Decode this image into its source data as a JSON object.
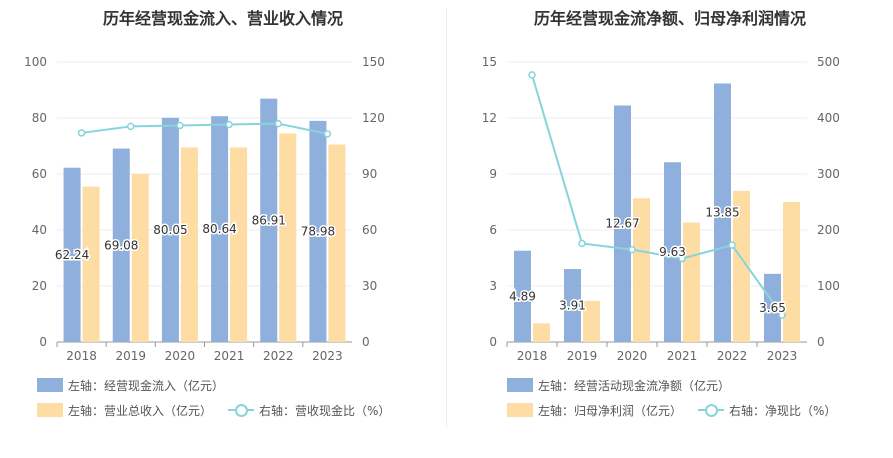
{
  "colors": {
    "left": "#8FAFDD",
    "right": "#FEDDA4",
    "line": "#88D4DC",
    "axis": "#999999",
    "grid": "#E8ECF4"
  },
  "chart_data": [
    {
      "type": "bar",
      "title": "历年经营现金流入、营业收入情况",
      "categories": [
        "2018",
        "2019",
        "2020",
        "2021",
        "2022",
        "2023"
      ],
      "ylim_left": [
        0,
        100
      ],
      "ylim_right": [
        0,
        150
      ],
      "left_ticks": [
        "0",
        "20",
        "40",
        "60",
        "80",
        "100"
      ],
      "right_ticks": [
        "0",
        "30",
        "60",
        "90",
        "120",
        "150"
      ],
      "series": [
        {
          "name": "左轴：经营现金流入（亿元）",
          "axis": "left",
          "kind": "bar",
          "values": [
            62.24,
            69.08,
            80.05,
            80.64,
            86.91,
            78.98
          ],
          "labels_shown": true
        },
        {
          "name": "左轴：营业总收入（亿元）",
          "axis": "left",
          "kind": "bar",
          "values": [
            55.5,
            60.0,
            69.5,
            69.5,
            74.5,
            70.5
          ],
          "labels_shown": false
        },
        {
          "name": "右轴：营收现金比（%）",
          "axis": "right",
          "kind": "line",
          "values": [
            112,
            115.5,
            116,
            116.5,
            117,
            111.5
          ],
          "labels_shown": false
        }
      ],
      "grid": true
    },
    {
      "type": "bar",
      "title": "历年经营现金流净额、归母净利润情况",
      "categories": [
        "2018",
        "2019",
        "2020",
        "2021",
        "2022",
        "2023"
      ],
      "ylim_left": [
        0,
        15
      ],
      "ylim_right": [
        0,
        500
      ],
      "left_ticks": [
        "0",
        "3",
        "6",
        "9",
        "12",
        "15"
      ],
      "right_ticks": [
        "0",
        "100",
        "200",
        "300",
        "400",
        "500"
      ],
      "series": [
        {
          "name": "左轴：经营活动现金流净额（亿元）",
          "axis": "left",
          "kind": "bar",
          "values": [
            4.89,
            3.91,
            12.67,
            9.63,
            13.85,
            3.65
          ],
          "labels_shown": true
        },
        {
          "name": "左轴：归母净利润（亿元）",
          "axis": "left",
          "kind": "bar",
          "values": [
            1.0,
            2.2,
            7.7,
            6.4,
            8.1,
            7.5
          ],
          "labels_shown": false
        },
        {
          "name": "右轴：净现比（%）",
          "axis": "right",
          "kind": "line",
          "values": [
            477,
            176,
            165,
            149,
            173,
            48
          ],
          "labels_shown": false
        }
      ],
      "grid": true
    }
  ]
}
